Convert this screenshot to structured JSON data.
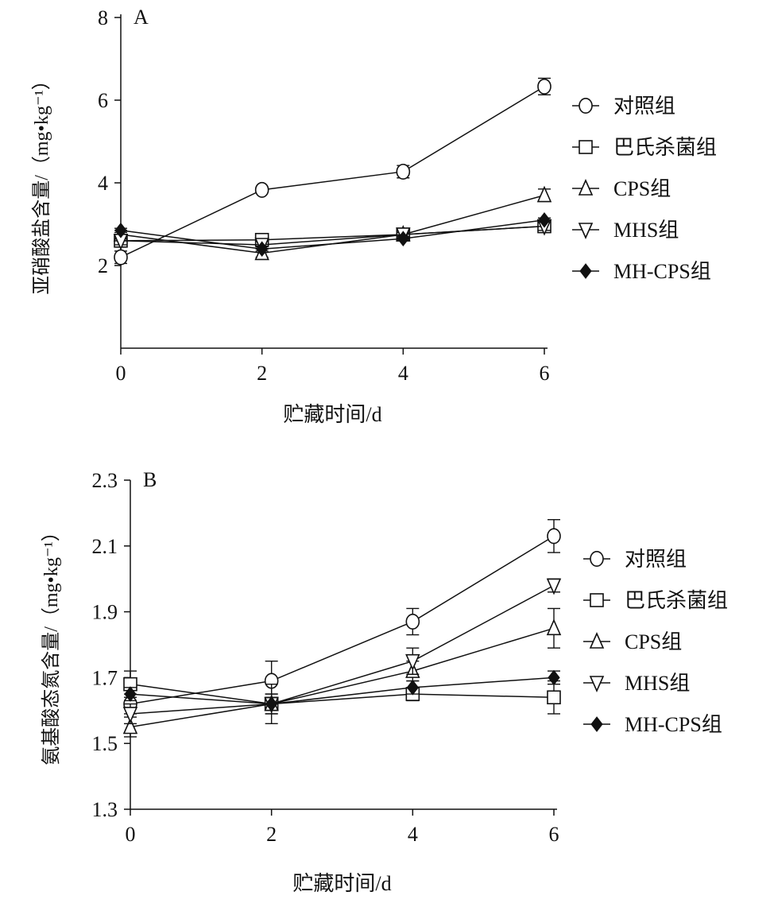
{
  "chart_data": [
    {
      "type": "line",
      "panel_label": "A",
      "title": "",
      "xlabel": "贮藏时间/d",
      "ylabel": "亚硝酸盐含量/（mg•kg⁻¹）",
      "x": [
        0,
        2,
        4,
        6
      ],
      "xticks": [
        "0",
        "2",
        "4",
        "6"
      ],
      "yticks": [
        "2",
        "4",
        "6",
        "8"
      ],
      "ylim": [
        0,
        8
      ],
      "xlim": [
        0,
        6
      ],
      "legend_position": "right",
      "series": [
        {
          "name": "对照组",
          "marker": "circle",
          "values": [
            2.2,
            3.83,
            4.27,
            6.33
          ],
          "errors": [
            0.15,
            0.05,
            0.15,
            0.2
          ]
        },
        {
          "name": "巴氏杀菌组",
          "marker": "square",
          "values": [
            2.6,
            2.62,
            2.75,
            2.95
          ],
          "errors": [
            0.1,
            0.05,
            0.05,
            0.15
          ]
        },
        {
          "name": "CPS组",
          "marker": "triangle-up",
          "values": [
            2.75,
            2.3,
            2.75,
            3.7
          ],
          "errors": [
            0.1,
            0.1,
            0.05,
            0.15
          ]
        },
        {
          "name": "MHS组",
          "marker": "triangle-down",
          "values": [
            2.6,
            2.5,
            2.75,
            2.95
          ],
          "errors": [
            0.1,
            0.1,
            0.05,
            0.1
          ]
        },
        {
          "name": "MH-CPS组",
          "marker": "diamond",
          "values": [
            2.85,
            2.4,
            2.65,
            3.1
          ],
          "errors": [
            0.05,
            0.05,
            0.05,
            0.05
          ]
        }
      ]
    },
    {
      "type": "line",
      "panel_label": "B",
      "title": "",
      "xlabel": "贮藏时间/d",
      "ylabel": "氨基酸态氮含量/（mg•kg⁻¹）",
      "x": [
        0,
        2,
        4,
        6
      ],
      "xticks": [
        "0",
        "2",
        "4",
        "6"
      ],
      "yticks": [
        "1.3",
        "1.5",
        "1.7",
        "1.9",
        "2.1",
        "2.3"
      ],
      "ylim": [
        1.3,
        2.3
      ],
      "xlim": [
        0,
        6
      ],
      "legend_position": "right",
      "series": [
        {
          "name": "对照组",
          "marker": "circle",
          "values": [
            1.62,
            1.69,
            1.87,
            2.13
          ],
          "errors": [
            0.03,
            0.06,
            0.04,
            0.05
          ]
        },
        {
          "name": "巴氏杀菌组",
          "marker": "square",
          "values": [
            1.68,
            1.62,
            1.65,
            1.64
          ],
          "errors": [
            0.04,
            0.06,
            0.02,
            0.05
          ]
        },
        {
          "name": "CPS组",
          "marker": "triangle-up",
          "values": [
            1.55,
            1.62,
            1.72,
            1.85
          ],
          "errors": [
            0.03,
            0.03,
            0.03,
            0.06
          ]
        },
        {
          "name": "MHS组",
          "marker": "triangle-down",
          "values": [
            1.59,
            1.62,
            1.75,
            1.98
          ],
          "errors": [
            0.03,
            0.03,
            0.04,
            0.02
          ]
        },
        {
          "name": "MH-CPS组",
          "marker": "diamond",
          "values": [
            1.65,
            1.62,
            1.67,
            1.7
          ],
          "errors": [
            0.02,
            0.02,
            0.02,
            0.02
          ]
        }
      ]
    }
  ]
}
